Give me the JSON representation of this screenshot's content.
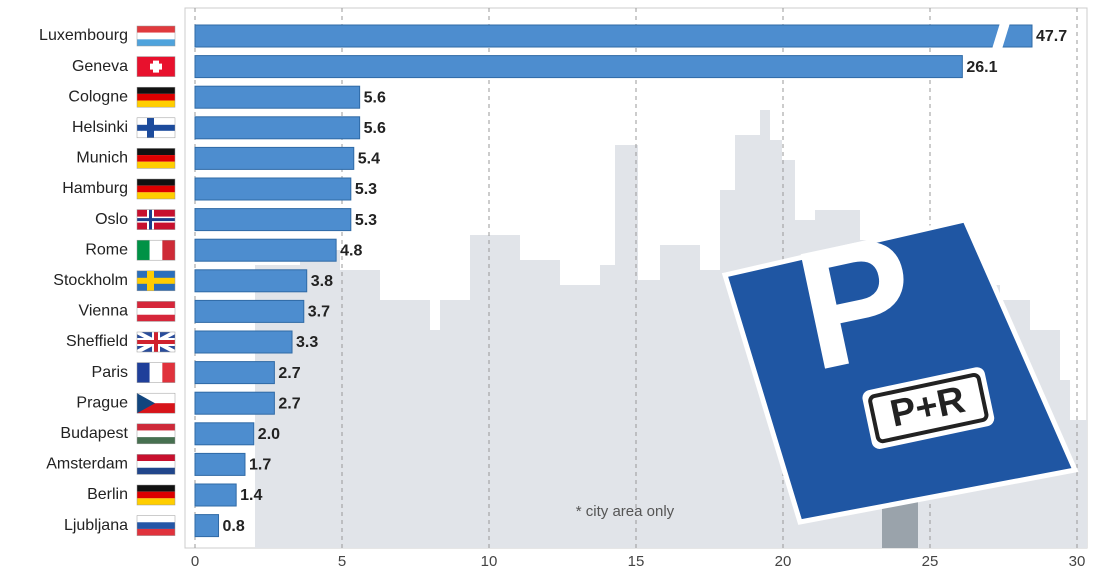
{
  "chart_data": {
    "type": "bar",
    "orientation": "horizontal",
    "categories": [
      "Luxembourg",
      "Geneva",
      "Cologne",
      "Helsinki",
      "Munich",
      "Hamburg",
      "Oslo",
      "Rome",
      "Stockholm",
      "Vienna",
      "Sheffield",
      "Paris",
      "Prague",
      "Budapest",
      "Amsterdam",
      "Berlin",
      "Ljubljana"
    ],
    "values": [
      47.7,
      26.1,
      5.6,
      5.6,
      5.4,
      5.3,
      5.3,
      4.8,
      3.8,
      3.7,
      3.3,
      2.7,
      2.7,
      2.0,
      1.7,
      1.4,
      0.8
    ],
    "value_labels": [
      "47.7",
      "26.1",
      "5.6",
      "5.6",
      "5.4",
      "5.3",
      "5.3",
      "4.8",
      "3.8",
      "3.7",
      "3.3",
      "2.7",
      "2.7",
      "2.0",
      "1.7",
      "1.4",
      "0.8"
    ],
    "color": "#4d8dcf",
    "xlim": [
      0,
      30
    ],
    "xticks": [
      0,
      5,
      10,
      15,
      20,
      25,
      30
    ],
    "grid": true,
    "note": "* city area only",
    "sign_labels": [
      "P",
      "P+R"
    ]
  }
}
